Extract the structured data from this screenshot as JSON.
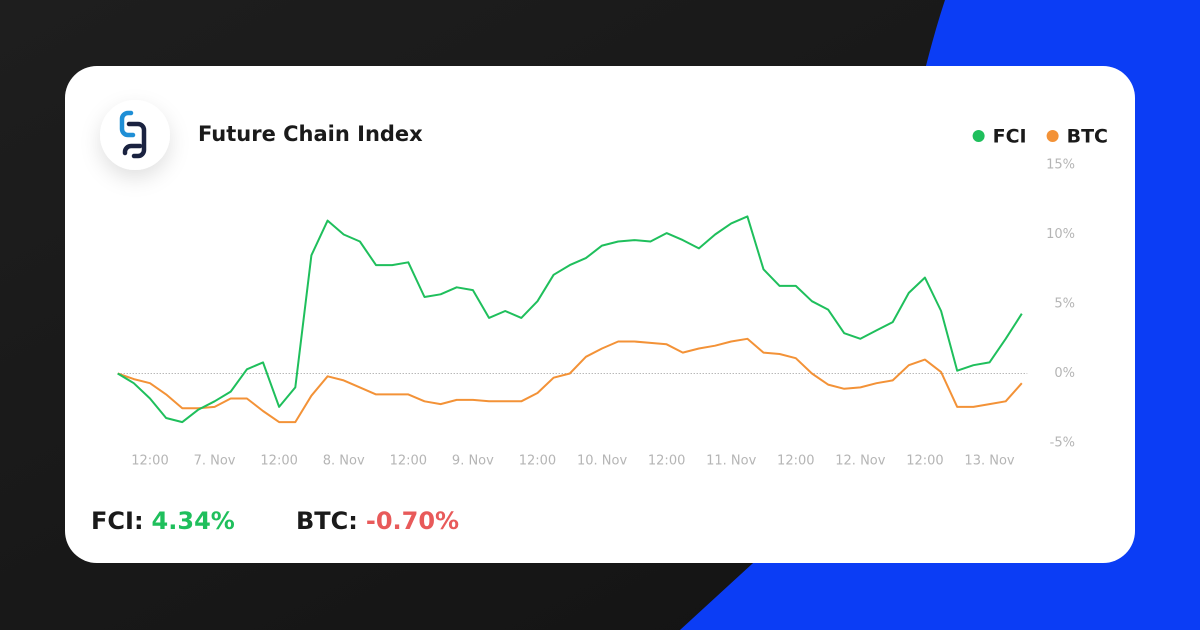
{
  "chart_data": {
    "type": "line",
    "title": "Future Chain Index",
    "x": [
      6,
      9,
      12,
      15,
      18,
      21,
      24,
      27,
      30,
      33,
      36,
      39,
      42,
      45,
      48,
      51,
      54,
      57,
      60,
      63,
      66,
      69,
      72,
      75,
      78,
      81,
      84,
      87,
      90,
      93,
      96,
      99,
      102,
      105,
      108,
      111,
      114,
      117,
      120,
      123,
      126,
      129,
      132,
      135,
      138,
      141,
      144,
      147,
      150,
      153,
      156,
      159,
      162,
      165,
      168,
      171,
      174
    ],
    "series": [
      {
        "name": "FCI",
        "color": "#1fbf5c",
        "values": [
          0,
          -0.7,
          -1.8,
          -3.2,
          -3.5,
          -2.6,
          -2,
          -1.3,
          0.3,
          0.8,
          -2.4,
          -1,
          8.5,
          11,
          10,
          9.5,
          7.8,
          7.8,
          8,
          5.5,
          5.7,
          6.2,
          6,
          4,
          4.5,
          4,
          5.2,
          7.1,
          7.8,
          8.3,
          9.2,
          9.5,
          9.6,
          9.5,
          10.1,
          9.6,
          9,
          10,
          10.8,
          11.3,
          7.5,
          6.3,
          6.3,
          5.2,
          4.6,
          2.9,
          2.5,
          3.1,
          3.7,
          5.8,
          6.9,
          4.5,
          0.2,
          0.6,
          0.8,
          2.5,
          4.3
        ]
      },
      {
        "name": "BTC",
        "color": "#f39237",
        "values": [
          0,
          -0.4,
          -0.7,
          -1.5,
          -2.5,
          -2.5,
          -2.4,
          -1.8,
          -1.8,
          -2.7,
          -3.5,
          -3.5,
          -1.6,
          -0.2,
          -0.5,
          -1,
          -1.5,
          -1.5,
          -1.5,
          -2,
          -2.2,
          -1.9,
          -1.9,
          -2,
          -2,
          -2,
          -1.4,
          -0.3,
          0,
          1.2,
          1.8,
          2.3,
          2.3,
          2.2,
          2.1,
          1.5,
          1.8,
          2,
          2.3,
          2.5,
          1.5,
          1.4,
          1.1,
          0,
          -0.8,
          -1.1,
          -1,
          -0.7,
          -0.5,
          0.6,
          1,
          0.1,
          -2.4,
          -2.4,
          -2.2,
          -2,
          -0.7
        ]
      }
    ],
    "xlim": [
      6,
      175
    ],
    "xticks": [
      {
        "value": 12,
        "label": "12:00"
      },
      {
        "value": 24,
        "label": "7. Nov"
      },
      {
        "value": 36,
        "label": "12:00"
      },
      {
        "value": 48,
        "label": "8. Nov"
      },
      {
        "value": 60,
        "label": "12:00"
      },
      {
        "value": 72,
        "label": "9. Nov"
      },
      {
        "value": 84,
        "label": "12:00"
      },
      {
        "value": 96,
        "label": "10. Nov"
      },
      {
        "value": 108,
        "label": "12:00"
      },
      {
        "value": 120,
        "label": "11. Nov"
      },
      {
        "value": 132,
        "label": "12:00"
      },
      {
        "value": 144,
        "label": "12. Nov"
      },
      {
        "value": 156,
        "label": "12:00"
      },
      {
        "value": 168,
        "label": "13. Nov"
      }
    ],
    "ylim": [
      -5,
      15
    ],
    "yticks": [
      {
        "value": 15,
        "label": "15%"
      },
      {
        "value": 10,
        "label": "10%"
      },
      {
        "value": 5,
        "label": "5%"
      },
      {
        "value": 0,
        "label": "0%"
      },
      {
        "value": -5,
        "label": "-5%"
      }
    ],
    "legend": "top-right"
  },
  "summary": [
    {
      "label": "FCI:",
      "value": "4.34%",
      "color": "#1fbf5c"
    },
    {
      "label": "BTC:",
      "value": "-0.70%",
      "color": "#e85a5a"
    }
  ]
}
